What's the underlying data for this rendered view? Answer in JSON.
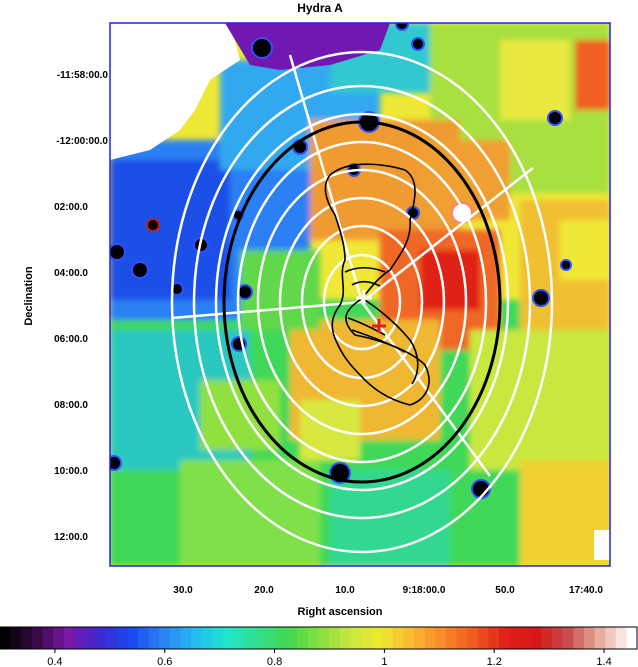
{
  "title": "Hydra A",
  "axes": {
    "xlabel": "Right ascension",
    "ylabel": "Declination",
    "x_ticks": [
      "30.0",
      "20.0",
      "10.0",
      "9:18:00.0",
      "50.0",
      "17:40.0"
    ],
    "y_ticks": [
      "-11:58:00.0",
      "-12:00:00.0",
      "02:00.0",
      "04:00.0",
      "06:00.0",
      "08:00.0",
      "10:00.0",
      "12:00.0"
    ]
  },
  "colorbar": {
    "ticks": [
      "0.4",
      "0.6",
      "0.8",
      "1",
      "1.2",
      "1.4"
    ],
    "range": [
      0.3,
      1.46
    ],
    "colors": [
      "#000000",
      "#3a0a4a",
      "#7a18a8",
      "#4028d0",
      "#1848f0",
      "#2c80f4",
      "#22b8f0",
      "#20e4d0",
      "#30e090",
      "#40d850",
      "#80e040",
      "#c8e840",
      "#f0e830",
      "#f8b830",
      "#f88828",
      "#f05820",
      "#e02018",
      "#d81818",
      "#c85050",
      "#e8b0a0",
      "#ffffff"
    ]
  },
  "colors": {
    "frame": "#2222ee",
    "overlay_rings": "#ffffff",
    "highlight_ellipse": "#000000",
    "marker": "#e02020"
  }
}
